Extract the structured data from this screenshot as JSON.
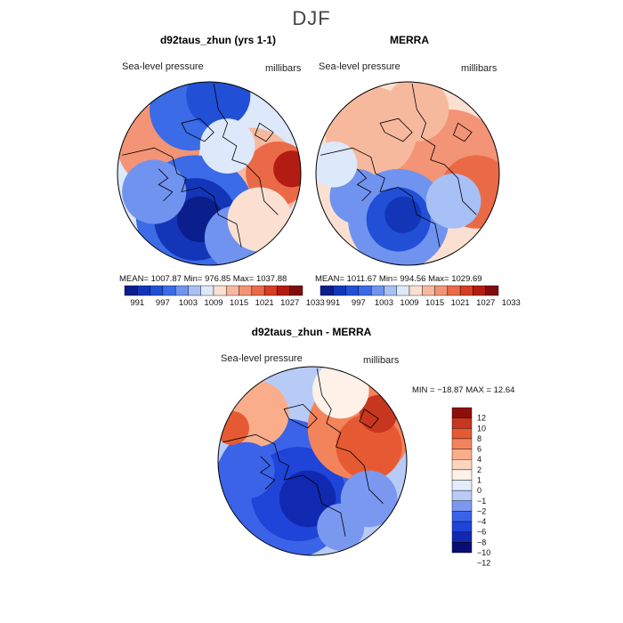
{
  "season": "DJF",
  "colors": {
    "scale11": [
      "#0a1f8c",
      "#1336b8",
      "#2150d6",
      "#3b6be6",
      "#6f93ef",
      "#a7c0f6",
      "#dde8fb",
      "#fbe0d2",
      "#f7b99e",
      "#f29475",
      "#ea6a47",
      "#d63d22",
      "#b21c12",
      "#7f0f0f"
    ],
    "diff": [
      "#090d73",
      "#1129b0",
      "#1f44d8",
      "#3b63e8",
      "#7a98ef",
      "#b7cbf6",
      "#e3ecfc",
      "#fdf1e8",
      "#fcd3bc",
      "#f9ad8a",
      "#f3835b",
      "#e65a33",
      "#c7361e",
      "#8c0f0b"
    ],
    "coast": "#000000"
  },
  "chart_data": [
    {
      "type": "heatmap",
      "title": "d92taus_zhun (yrs 1-1)",
      "variable": "Sea-level pressure",
      "units": "millibars",
      "stats_text": "MEAN= 1007.87   Min= 976.85   Max= 1037.88",
      "mean": 1007.87,
      "min": 976.85,
      "max": 1037.88,
      "colorbar_ticks": [
        "991",
        "997",
        "1003",
        "1009",
        "1015",
        "1021",
        "1027",
        "1033"
      ]
    },
    {
      "type": "heatmap",
      "title": "MERRA",
      "variable": "Sea-level pressure",
      "units": "millibars",
      "stats_text": "MEAN= 1011.67   Min= 994.56   Max= 1029.69",
      "mean": 1011.67,
      "min": 994.56,
      "max": 1029.69,
      "colorbar_ticks": [
        "991",
        "997",
        "1003",
        "1009",
        "1015",
        "1021",
        "1027",
        "1033"
      ]
    },
    {
      "type": "heatmap",
      "title": "d92taus_zhun - MERRA",
      "variable": "Sea-level pressure",
      "units": "millibars",
      "stats_text": "MIN = −18.87 MAX =  12.64",
      "min": -18.87,
      "max": 12.64,
      "colorbar_ticks": [
        "12",
        "10",
        "8",
        "6",
        "4",
        "2",
        "1",
        "0",
        "−1",
        "−2",
        "−4",
        "−6",
        "−8",
        "−10",
        "−12"
      ]
    }
  ]
}
